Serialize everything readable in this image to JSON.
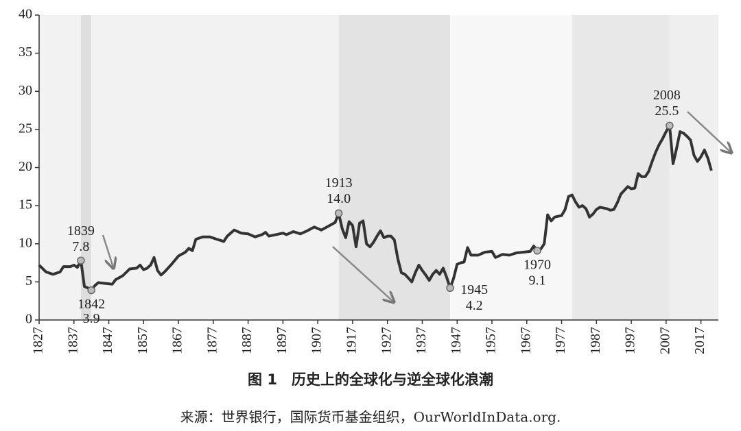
{
  "chart_data": {
    "type": "line",
    "title": "图 1　历史上的全球化与逆全球化浪潮",
    "source": "来源：世界银行，国际货币基金组织，OurWorldInData.org.",
    "color": "#333333",
    "x": [
      1827,
      1829,
      1831,
      1833,
      1834,
      1836,
      1837,
      1838,
      1839,
      1840,
      1841,
      1842,
      1843,
      1844,
      1846,
      1848,
      1849,
      1851,
      1853,
      1855,
      1856,
      1857,
      1858,
      1859,
      1860,
      1861,
      1862,
      1863,
      1865,
      1867,
      1869,
      1870,
      1871,
      1872,
      1874,
      1876,
      1878,
      1880,
      1881,
      1883,
      1885,
      1887,
      1889,
      1891,
      1892,
      1893,
      1895,
      1897,
      1898,
      1900,
      1902,
      1904,
      1906,
      1908,
      1910,
      1912,
      1913,
      1914,
      1915,
      1916,
      1917,
      1918,
      1919,
      1920,
      1921,
      1922,
      1923,
      1924,
      1925,
      1926,
      1927,
      1928,
      1929,
      1930,
      1931,
      1932,
      1933,
      1934,
      1935,
      1936,
      1937,
      1938,
      1939,
      1940,
      1941,
      1942,
      1943,
      1944,
      1945,
      1946,
      1947,
      1948,
      1949,
      1950,
      1951,
      1953,
      1955,
      1957,
      1958,
      1960,
      1962,
      1964,
      1966,
      1968,
      1969,
      1970,
      1971,
      1972,
      1973,
      1974,
      1975,
      1977,
      1978,
      1979,
      1980,
      1981,
      1982,
      1983,
      1984,
      1985,
      1986,
      1987,
      1988,
      1990,
      1991,
      1992,
      1993,
      1994,
      1995,
      1996,
      1997,
      1998,
      1999,
      2000,
      2001,
      2002,
      2003,
      2004,
      2005,
      2006,
      2007,
      2008,
      2009,
      2010,
      2011,
      2012,
      2013,
      2014,
      2015,
      2016,
      2017,
      2018,
      2019,
      2020
    ],
    "values": [
      7.2,
      6.3,
      6.0,
      6.3,
      7.0,
      7.0,
      7.2,
      6.9,
      7.8,
      4.4,
      4.2,
      3.9,
      4.5,
      4.9,
      4.8,
      4.7,
      5.3,
      5.8,
      6.7,
      6.8,
      7.2,
      6.6,
      6.8,
      7.2,
      8.2,
      6.5,
      5.9,
      6.3,
      7.3,
      8.4,
      8.9,
      9.4,
      9.1,
      10.6,
      10.9,
      10.9,
      10.6,
      10.3,
      11.0,
      11.8,
      11.4,
      11.3,
      10.9,
      11.2,
      11.5,
      11.0,
      11.2,
      11.4,
      11.2,
      11.6,
      11.3,
      11.7,
      12.2,
      11.8,
      12.3,
      12.8,
      14.0,
      12.0,
      10.8,
      12.9,
      12.4,
      9.6,
      12.7,
      13.0,
      10.0,
      9.6,
      10.2,
      11.0,
      11.7,
      10.8,
      11.0,
      11.0,
      10.5,
      8.0,
      6.2,
      6.0,
      5.5,
      5.0,
      6.2,
      7.2,
      6.5,
      5.9,
      5.2,
      6.0,
      6.5,
      6.0,
      6.8,
      5.6,
      4.2,
      5.5,
      7.3,
      7.5,
      7.6,
      9.5,
      8.5,
      8.5,
      8.9,
      9.0,
      8.2,
      8.6,
      8.5,
      8.8,
      8.9,
      9.0,
      9.7,
      9.1,
      9.3,
      10.0,
      13.8,
      13.0,
      13.5,
      13.7,
      14.5,
      16.2,
      16.4,
      15.5,
      14.8,
      15.0,
      14.6,
      13.5,
      13.9,
      14.5,
      14.8,
      14.6,
      14.4,
      14.5,
      15.4,
      16.5,
      17.0,
      17.5,
      17.2,
      17.3,
      19.2,
      18.8,
      18.8,
      19.5,
      20.8,
      22.0,
      23.0,
      23.8,
      24.7,
      25.5,
      20.5,
      22.5,
      24.7,
      24.5,
      24.1,
      23.6,
      21.6,
      20.8,
      21.4,
      22.3,
      21.2,
      19.6
    ],
    "xlim": [
      1827,
      2022
    ],
    "ylim": [
      0,
      40
    ],
    "xticks": [
      1827,
      1837,
      1847,
      1857,
      1867,
      1877,
      1887,
      1897,
      1907,
      1917,
      1927,
      1937,
      1947,
      1957,
      1967,
      1977,
      1987,
      1997,
      2007,
      2017
    ],
    "yticks": [
      0,
      5,
      10,
      15,
      20,
      25,
      30,
      35,
      40
    ],
    "periods": [
      {
        "start": 1827,
        "end": 1839,
        "color": "#f2f2f2"
      },
      {
        "start": 1839,
        "end": 1842,
        "color": "#dedede"
      },
      {
        "start": 1842,
        "end": 1913,
        "color": "#f2f2f2"
      },
      {
        "start": 1913,
        "end": 1945,
        "color": "#e3e3e3"
      },
      {
        "start": 1945,
        "end": 1980,
        "color": "#f7f7f7"
      },
      {
        "start": 1980,
        "end": 2008,
        "color": "#e8e8e8"
      },
      {
        "start": 2008,
        "end": 2022,
        "color": "#efefef"
      }
    ],
    "annotations": [
      {
        "year_label": "1839",
        "value_label": "7.8",
        "x": 1839,
        "y": 7.8
      },
      {
        "year_label": "1842",
        "value_label": "3.9",
        "x": 1842,
        "y": 3.9
      },
      {
        "year_label": "1913",
        "value_label": "14.0",
        "x": 1913,
        "y": 14.0
      },
      {
        "year_label": "1945",
        "value_label": "4.2",
        "x": 1945,
        "y": 4.2
      },
      {
        "year_label": "1970",
        "value_label": "9.1",
        "x": 1970,
        "y": 9.1
      },
      {
        "year_label": "2008",
        "value_label": "25.5",
        "x": 2008,
        "y": 25.5
      }
    ]
  }
}
